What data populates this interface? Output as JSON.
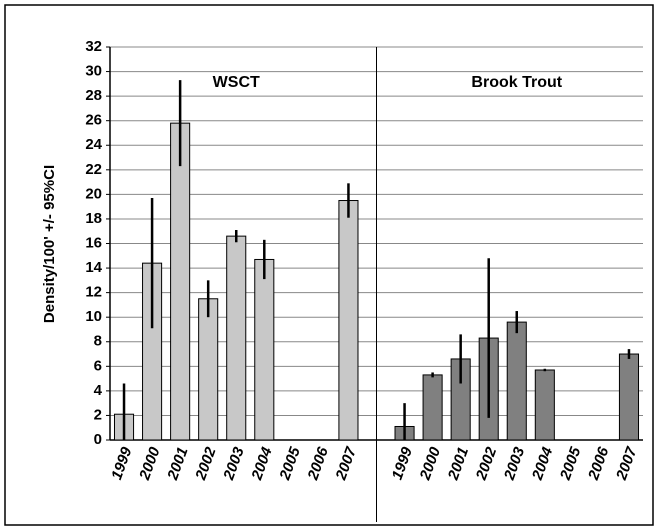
{
  "chart_data": {
    "type": "bar",
    "ylabel": "Density/100' +/- 95%CI",
    "categories": [
      "1999",
      "2000",
      "2001",
      "2002",
      "2003",
      "2004",
      "2005",
      "2006",
      "2007",
      null,
      "1999",
      "2000",
      "2001",
      "2002",
      "2003",
      "2004",
      "2005",
      "2006",
      "2007"
    ],
    "series": [
      {
        "name": "WSCT",
        "color": "#c8c8c8",
        "values": [
          2.1,
          14.4,
          25.8,
          11.5,
          16.6,
          14.7,
          null,
          null,
          19.5,
          null,
          null,
          null,
          null,
          null,
          null,
          null,
          null,
          null,
          null
        ],
        "errors": [
          2.5,
          5.3,
          3.5,
          1.5,
          0.5,
          1.6,
          null,
          null,
          1.4,
          null,
          null,
          null,
          null,
          null,
          null,
          null,
          null,
          null,
          null
        ]
      },
      {
        "name": "Brook Trout",
        "color": "#808080",
        "values": [
          null,
          null,
          null,
          null,
          null,
          null,
          null,
          null,
          null,
          null,
          1.1,
          5.3,
          6.6,
          8.3,
          9.6,
          5.7,
          null,
          null,
          7.0
        ],
        "errors": [
          null,
          null,
          null,
          null,
          null,
          null,
          null,
          null,
          null,
          null,
          1.9,
          0.2,
          2.0,
          6.5,
          0.9,
          0.1,
          null,
          null,
          0.4
        ]
      }
    ],
    "ylim": [
      0,
      32
    ],
    "yticks": [
      0,
      2,
      4,
      6,
      8,
      10,
      12,
      14,
      16,
      18,
      20,
      22,
      24,
      26,
      28,
      30,
      32
    ],
    "grid": true
  }
}
